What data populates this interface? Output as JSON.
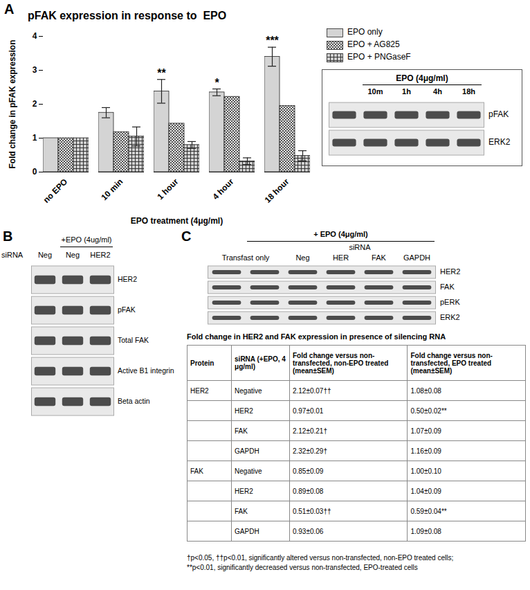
{
  "chart_data": {
    "type": "bar",
    "panel": "A",
    "title": "pFAK expression in response to  EPO",
    "x_label": "EPO treatment (4μg/ml)",
    "y_label": "Fold change in pFAK expression",
    "categories": [
      "no EPO",
      "10 min",
      "1 hour",
      "4 hour",
      "18 hour"
    ],
    "series": [
      {
        "name": "EPO only",
        "color": "#d4d4d4",
        "values": [
          1,
          1.75,
          2.38,
          2.35,
          3.4
        ],
        "errors": [
          null,
          0.15,
          0.35,
          0.1,
          0.28
        ]
      },
      {
        "name": "EPO + AG825",
        "color": "#e6e6e6",
        "values": [
          1,
          1.18,
          1.43,
          2.22,
          1.95
        ],
        "errors": [
          null,
          null,
          null,
          null,
          null
        ]
      },
      {
        "name": "EPO + PNGaseF",
        "color": "#d0d0d0",
        "values": [
          1,
          1.05,
          0.8,
          0.32,
          0.48
        ],
        "errors": [
          null,
          0.28,
          0.1,
          0.1,
          0.15
        ]
      }
    ],
    "annotations": [
      {
        "category": "1 hour",
        "series": "EPO only",
        "text": "**"
      },
      {
        "category": "4 hour",
        "series": "EPO only",
        "text": "*"
      },
      {
        "category": "18 hour",
        "series": "EPO only",
        "text": "***"
      }
    ],
    "ylim": [
      0,
      4
    ],
    "yticks": [
      0,
      1,
      2,
      3,
      4
    ],
    "grid": false,
    "legend": "right"
  },
  "blots": {
    "A_inset": {
      "header": "EPO (4μg/ml)",
      "lanes": [
        null,
        "10m",
        "1h",
        "4h",
        "18h"
      ],
      "rows": [
        "pFAK",
        "ERK2"
      ]
    },
    "B": {
      "panel": "B",
      "treatment": "+EPO (4ug/ml)",
      "lane_title": "siRNA",
      "lanes": [
        "Neg",
        "Neg",
        "HER2"
      ],
      "rows": [
        "HER2",
        "pFAK",
        "Total FAK",
        "Active B1 integrin",
        "Beta actin"
      ]
    },
    "C": {
      "panel": "C",
      "treatment": "+ EPO (4μg/ml)",
      "control": "Transfast only",
      "group": "siRNA",
      "lanes": [
        "Neg",
        "HER",
        "FAK",
        "GAPDH"
      ],
      "rows": [
        "HER2",
        "FAK",
        "pERK",
        "ERK2"
      ]
    }
  },
  "table": {
    "title": "Fold change in HER2 and FAK expression in presence of silencing RNA",
    "columns": [
      "Protein",
      "siRNA (+EPO, 4 μg/ml)",
      "Fold change versus non-transfected, non-EPO treated (mean±SEM)",
      "Fold change versus non-transfected, EPO treated (mean±SEM)"
    ],
    "rows": [
      [
        "HER2",
        "Negative",
        "2.12±0.07††",
        "1.08±0.08"
      ],
      [
        null,
        "HER2",
        "0.97±0.01",
        "0.50±0.02**"
      ],
      [
        null,
        "FAK",
        "2.12±0.21†",
        "1.07±0.09"
      ],
      [
        null,
        "GAPDH",
        "2.32±0.29†",
        "1.16±0.09"
      ],
      [
        "FAK",
        "Negative",
        "0.85±0.09",
        "1.00±0.10"
      ],
      [
        null,
        "HER2",
        "0.89±0.08",
        "1.04±0.09"
      ],
      [
        null,
        "FAK",
        "0.51±0.03††",
        "0.59±0.04**"
      ],
      [
        null,
        "GAPDH",
        "0.93±0.06",
        "1.09±0.08"
      ]
    ],
    "footnotes": [
      "†p<0.05, ††p<0.01, significantly altered versus non-transfected, non-EPO treated cells;",
      "**p<0.01, significantly decreased versus non-transfected, EPO-treated cells"
    ]
  }
}
